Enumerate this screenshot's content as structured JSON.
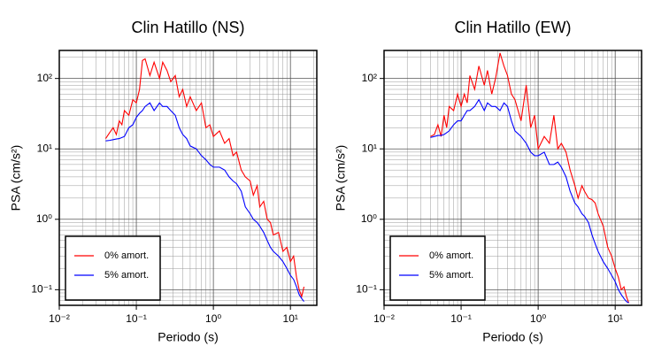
{
  "chart_data": [
    {
      "type": "line",
      "title": "Clin Hatillo (NS)",
      "x_label": "Periodo (s)",
      "y_label": "PSA (cm/s²)",
      "xscale": "log",
      "yscale": "log",
      "grid": true,
      "minor_grid": true,
      "legend_loc": "lower left",
      "xlim": [
        0.01,
        22
      ],
      "ylim": [
        0.06,
        250
      ],
      "xticks": [
        {
          "value": 0.01,
          "label": "10⁻²"
        },
        {
          "value": 0.1,
          "label": "10⁻¹"
        },
        {
          "value": 1,
          "label": "10⁰"
        },
        {
          "value": 10,
          "label": "10¹"
        }
      ],
      "yticks": [
        {
          "value": 0.1,
          "label": "10⁻¹"
        },
        {
          "value": 1,
          "label": "10⁰"
        },
        {
          "value": 10,
          "label": "10¹"
        },
        {
          "value": 100,
          "label": "10²"
        }
      ],
      "x": [
        0.04,
        0.045,
        0.05,
        0.055,
        0.06,
        0.065,
        0.07,
        0.08,
        0.09,
        0.1,
        0.11,
        0.12,
        0.13,
        0.15,
        0.17,
        0.2,
        0.22,
        0.25,
        0.28,
        0.32,
        0.36,
        0.4,
        0.45,
        0.5,
        0.6,
        0.7,
        0.8,
        0.9,
        1.0,
        1.2,
        1.4,
        1.6,
        1.8,
        2.0,
        2.3,
        2.6,
        3.0,
        3.3,
        3.7,
        4.0,
        4.5,
        5,
        5.5,
        6,
        7,
        8,
        9,
        10,
        11,
        12,
        13,
        14,
        15
      ],
      "series": [
        {
          "name": "0% amort.",
          "color": "#ff0000",
          "values": [
            14,
            17,
            20,
            16,
            25,
            22,
            35,
            30,
            50,
            45,
            70,
            180,
            190,
            110,
            170,
            100,
            170,
            130,
            90,
            110,
            55,
            70,
            40,
            55,
            35,
            45,
            20,
            22,
            15,
            18,
            12,
            14,
            8,
            9,
            5,
            4,
            3.5,
            2.2,
            3,
            1.5,
            1.8,
            1.0,
            0.9,
            0.6,
            0.65,
            0.35,
            0.4,
            0.25,
            0.3,
            0.15,
            0.1,
            0.08,
            0.11
          ]
        },
        {
          "name": "5% amort.",
          "color": "#0000ff",
          "values": [
            13,
            13.2,
            13.5,
            13.8,
            14,
            14.5,
            15,
            20,
            22,
            28,
            32,
            35,
            40,
            45,
            35,
            45,
            40,
            40,
            35,
            30,
            20,
            16,
            14,
            11,
            10,
            8,
            7,
            6,
            5.5,
            5.5,
            5,
            4,
            3.5,
            3.2,
            2.5,
            1.5,
            1.2,
            1.0,
            0.9,
            0.8,
            0.65,
            0.5,
            0.4,
            0.35,
            0.3,
            0.25,
            0.2,
            0.16,
            0.14,
            0.11,
            0.085,
            0.075,
            0.068
          ]
        }
      ]
    },
    {
      "type": "line",
      "title": "Clin Hatillo (EW)",
      "x_label": "Periodo (s)",
      "y_label": "PSA (cm/s²)",
      "xscale": "log",
      "yscale": "log",
      "grid": true,
      "minor_grid": true,
      "legend_loc": "lower left",
      "xlim": [
        0.01,
        22
      ],
      "ylim": [
        0.06,
        250
      ],
      "xticks": [
        {
          "value": 0.01,
          "label": "10⁻²"
        },
        {
          "value": 0.1,
          "label": "10⁻¹"
        },
        {
          "value": 1,
          "label": "10⁰"
        },
        {
          "value": 10,
          "label": "10¹"
        }
      ],
      "yticks": [
        {
          "value": 0.1,
          "label": "10⁻¹"
        },
        {
          "value": 1,
          "label": "10⁰"
        },
        {
          "value": 10,
          "label": "10¹"
        },
        {
          "value": 100,
          "label": "10²"
        }
      ],
      "x": [
        0.04,
        0.045,
        0.05,
        0.055,
        0.06,
        0.065,
        0.07,
        0.08,
        0.09,
        0.1,
        0.11,
        0.12,
        0.13,
        0.15,
        0.17,
        0.2,
        0.22,
        0.25,
        0.28,
        0.32,
        0.36,
        0.4,
        0.45,
        0.5,
        0.6,
        0.7,
        0.8,
        0.9,
        1.0,
        1.2,
        1.4,
        1.6,
        1.8,
        2.0,
        2.3,
        2.6,
        3.0,
        3.3,
        3.7,
        4.0,
        4.5,
        5,
        5.5,
        6,
        7,
        8,
        9,
        10,
        11,
        12,
        13,
        14,
        15
      ],
      "series": [
        {
          "name": "0% amort.",
          "color": "#ff0000",
          "values": [
            15,
            16,
            22,
            15,
            30,
            20,
            40,
            35,
            60,
            40,
            60,
            45,
            110,
            70,
            150,
            80,
            130,
            60,
            100,
            230,
            150,
            110,
            60,
            50,
            25,
            80,
            20,
            30,
            10,
            15,
            12,
            30,
            10,
            12,
            9,
            5,
            3,
            2,
            3,
            2.5,
            2.0,
            1.9,
            1.7,
            1.2,
            0.8,
            0.4,
            0.3,
            0.2,
            0.15,
            0.1,
            0.11,
            0.08,
            0.065
          ]
        },
        {
          "name": "5% amort.",
          "color": "#0000ff",
          "values": [
            14.5,
            15,
            15.5,
            15.5,
            16,
            17,
            18,
            22,
            25,
            25,
            30,
            35,
            35,
            40,
            50,
            35,
            45,
            40,
            40,
            35,
            45,
            40,
            25,
            18,
            15,
            12,
            9,
            8,
            8,
            9,
            6,
            6,
            6.5,
            5.5,
            4,
            2.5,
            1.7,
            1.5,
            1.2,
            1.1,
            0.9,
            0.6,
            0.45,
            0.35,
            0.25,
            0.2,
            0.16,
            0.13,
            0.1,
            0.085,
            0.075,
            0.068,
            0.065
          ]
        }
      ]
    }
  ]
}
